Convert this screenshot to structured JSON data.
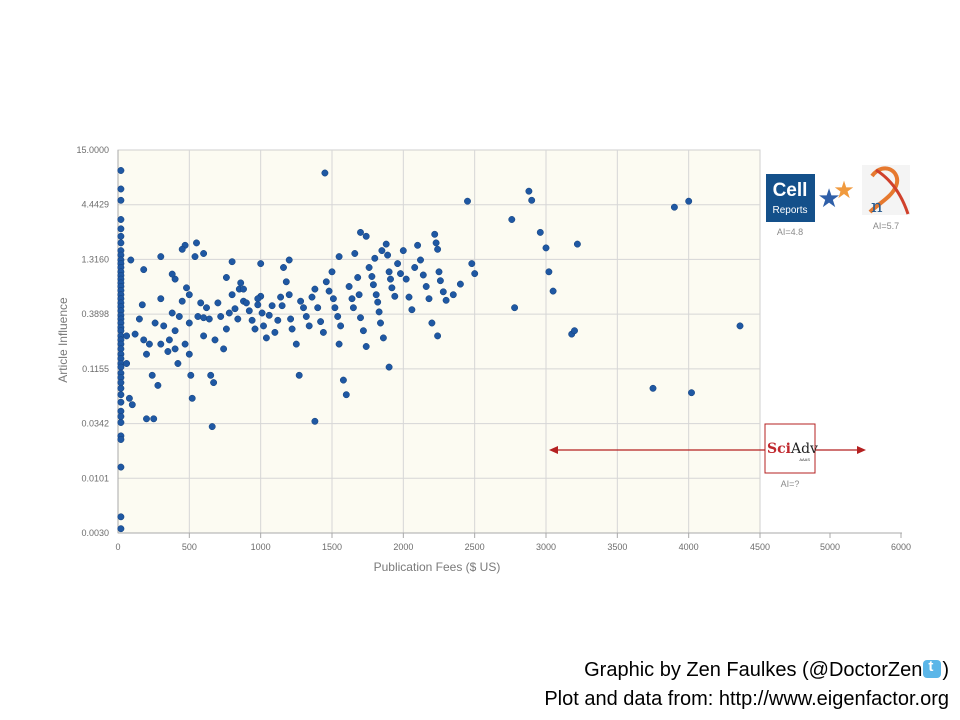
{
  "chart_data": {
    "type": "scatter",
    "xlabel": "Publication Fees ($ US)",
    "ylabel": "Article Influence",
    "x_ticks": [
      "0",
      "500",
      "1000",
      "1500",
      "2000",
      "2500",
      "3000",
      "3500",
      "4000",
      "4500",
      "5000",
      "6000"
    ],
    "y_ticks": [
      "15.0000",
      "4.4429",
      "1.3160",
      "0.3898",
      "0.1155",
      "0.0342",
      "0.0101",
      "0.0030"
    ],
    "xlim": [
      0,
      4500
    ],
    "ylim": [
      0.003,
      15
    ],
    "y_scale": "log",
    "grid": true,
    "marker_color": "#1f58a3",
    "plot_background": "#fcfbf2",
    "points": [
      [
        20,
        9.5
      ],
      [
        20,
        6.3
      ],
      [
        20,
        4.9
      ],
      [
        20,
        3.2
      ],
      [
        20,
        2.6
      ],
      [
        20,
        2.2
      ],
      [
        20,
        1.9
      ],
      [
        20,
        1.6
      ],
      [
        20,
        1.45
      ],
      [
        20,
        1.3
      ],
      [
        20,
        1.2
      ],
      [
        20,
        1.1
      ],
      [
        20,
        1.0
      ],
      [
        20,
        0.92
      ],
      [
        20,
        0.85
      ],
      [
        20,
        0.78
      ],
      [
        20,
        0.72
      ],
      [
        20,
        0.66
      ],
      [
        20,
        0.6
      ],
      [
        20,
        0.55
      ],
      [
        20,
        0.5
      ],
      [
        20,
        0.46
      ],
      [
        20,
        0.42
      ],
      [
        20,
        0.38
      ],
      [
        20,
        0.35
      ],
      [
        20,
        0.32
      ],
      [
        20,
        0.29
      ],
      [
        20,
        0.27
      ],
      [
        20,
        0.24
      ],
      [
        20,
        0.22
      ],
      [
        20,
        0.2
      ],
      [
        20,
        0.18
      ],
      [
        20,
        0.16
      ],
      [
        20,
        0.145
      ],
      [
        20,
        0.13
      ],
      [
        20,
        0.12
      ],
      [
        20,
        0.105
      ],
      [
        20,
        0.095
      ],
      [
        20,
        0.085
      ],
      [
        20,
        0.075
      ],
      [
        20,
        0.065
      ],
      [
        20,
        0.055
      ],
      [
        20,
        0.045
      ],
      [
        20,
        0.04
      ],
      [
        20,
        0.035
      ],
      [
        20,
        0.026
      ],
      [
        20,
        0.024
      ],
      [
        20,
        0.013
      ],
      [
        20,
        0.0043
      ],
      [
        20,
        0.0033
      ],
      [
        60,
        0.24
      ],
      [
        60,
        0.13
      ],
      [
        80,
        0.06
      ],
      [
        100,
        0.052
      ],
      [
        90,
        1.3
      ],
      [
        120,
        0.25
      ],
      [
        150,
        0.35
      ],
      [
        170,
        0.48
      ],
      [
        180,
        0.22
      ],
      [
        200,
        0.16
      ],
      [
        200,
        0.038
      ],
      [
        220,
        0.2
      ],
      [
        240,
        0.1
      ],
      [
        250,
        0.038
      ],
      [
        260,
        0.32
      ],
      [
        280,
        0.08
      ],
      [
        300,
        0.55
      ],
      [
        300,
        0.2
      ],
      [
        320,
        0.3
      ],
      [
        350,
        0.17
      ],
      [
        360,
        0.22
      ],
      [
        380,
        0.4
      ],
      [
        400,
        0.27
      ],
      [
        400,
        0.18
      ],
      [
        420,
        0.13
      ],
      [
        430,
        0.37
      ],
      [
        450,
        0.52
      ],
      [
        470,
        0.2
      ],
      [
        480,
        0.7
      ],
      [
        500,
        0.6
      ],
      [
        500,
        0.32
      ],
      [
        500,
        0.16
      ],
      [
        510,
        0.1
      ],
      [
        520,
        0.06
      ],
      [
        540,
        1.4
      ],
      [
        560,
        0.37
      ],
      [
        580,
        0.5
      ],
      [
        600,
        0.24
      ],
      [
        620,
        0.45
      ],
      [
        640,
        0.35
      ],
      [
        650,
        0.1
      ],
      [
        660,
        0.032
      ],
      [
        670,
        0.085
      ],
      [
        680,
        0.22
      ],
      [
        700,
        0.5
      ],
      [
        720,
        0.37
      ],
      [
        740,
        0.18
      ],
      [
        760,
        0.28
      ],
      [
        780,
        0.4
      ],
      [
        800,
        0.6
      ],
      [
        820,
        0.44
      ],
      [
        840,
        0.35
      ],
      [
        850,
        0.68
      ],
      [
        860,
        0.78
      ],
      [
        880,
        0.52
      ],
      [
        900,
        0.5
      ],
      [
        920,
        0.42
      ],
      [
        940,
        0.34
      ],
      [
        960,
        0.28
      ],
      [
        980,
        0.48
      ],
      [
        1000,
        1.2
      ],
      [
        1010,
        0.4
      ],
      [
        1020,
        0.3
      ],
      [
        1040,
        0.23
      ],
      [
        1060,
        0.38
      ],
      [
        1080,
        0.47
      ],
      [
        1100,
        0.26
      ],
      [
        1120,
        0.34
      ],
      [
        1140,
        0.57
      ],
      [
        1150,
        0.47
      ],
      [
        1160,
        1.1
      ],
      [
        1180,
        0.8
      ],
      [
        1200,
        0.6
      ],
      [
        1210,
        0.35
      ],
      [
        1220,
        0.28
      ],
      [
        1250,
        0.2
      ],
      [
        1270,
        0.1
      ],
      [
        1280,
        0.52
      ],
      [
        1300,
        0.45
      ],
      [
        1320,
        0.37
      ],
      [
        1340,
        0.3
      ],
      [
        1360,
        0.57
      ],
      [
        1380,
        0.68
      ],
      [
        1400,
        0.45
      ],
      [
        1420,
        0.33
      ],
      [
        1440,
        0.26
      ],
      [
        1460,
        0.8
      ],
      [
        1480,
        0.65
      ],
      [
        1500,
        1.0
      ],
      [
        1510,
        0.55
      ],
      [
        1520,
        0.45
      ],
      [
        1540,
        0.37
      ],
      [
        1560,
        0.3
      ],
      [
        1580,
        0.09
      ],
      [
        1600,
        0.065
      ],
      [
        1620,
        0.72
      ],
      [
        1640,
        0.55
      ],
      [
        1650,
        0.45
      ],
      [
        1660,
        1.5
      ],
      [
        1680,
        0.88
      ],
      [
        1690,
        0.6
      ],
      [
        1700,
        0.36
      ],
      [
        1720,
        0.27
      ],
      [
        1740,
        0.19
      ],
      [
        1760,
        1.1
      ],
      [
        1780,
        0.9
      ],
      [
        1790,
        0.75
      ],
      [
        1800,
        1.35
      ],
      [
        1810,
        0.6
      ],
      [
        1820,
        0.51
      ],
      [
        1830,
        0.41
      ],
      [
        1840,
        0.32
      ],
      [
        1860,
        0.23
      ],
      [
        1880,
        1.85
      ],
      [
        1890,
        1.45
      ],
      [
        1900,
        1.0
      ],
      [
        1910,
        0.85
      ],
      [
        1920,
        0.7
      ],
      [
        1940,
        0.58
      ],
      [
        1960,
        1.2
      ],
      [
        1980,
        0.96
      ],
      [
        2000,
        1.6
      ],
      [
        2020,
        0.85
      ],
      [
        2040,
        0.57
      ],
      [
        2060,
        0.43
      ],
      [
        2080,
        1.1
      ],
      [
        2100,
        1.8
      ],
      [
        2120,
        1.3
      ],
      [
        2140,
        0.93
      ],
      [
        2160,
        0.72
      ],
      [
        2180,
        0.55
      ],
      [
        2200,
        0.32
      ],
      [
        2220,
        2.3
      ],
      [
        2230,
        1.9
      ],
      [
        2240,
        1.65
      ],
      [
        2250,
        1.0
      ],
      [
        2260,
        0.82
      ],
      [
        2280,
        0.64
      ],
      [
        2300,
        0.53
      ],
      [
        2350,
        0.6
      ],
      [
        2400,
        0.76
      ],
      [
        2450,
        4.8
      ],
      [
        2480,
        1.2
      ],
      [
        2500,
        0.96
      ],
      [
        2760,
        3.2
      ],
      [
        2780,
        0.45
      ],
      [
        2880,
        6.0
      ],
      [
        2900,
        4.9
      ],
      [
        2960,
        2.4
      ],
      [
        3000,
        1.7
      ],
      [
        3020,
        1.0
      ],
      [
        3050,
        0.65
      ],
      [
        3180,
        0.25
      ],
      [
        3200,
        0.27
      ],
      [
        3220,
        1.85
      ],
      [
        3750,
        0.075
      ],
      [
        3900,
        4.2
      ],
      [
        4000,
        4.8
      ],
      [
        4020,
        0.068
      ],
      [
        4360,
        0.3
      ],
      [
        1450,
        9.0
      ],
      [
        1550,
        1.4
      ],
      [
        1700,
        2.4
      ],
      [
        1740,
        2.2
      ],
      [
        1200,
        1.3
      ],
      [
        800,
        1.25
      ],
      [
        600,
        1.5
      ],
      [
        550,
        1.9
      ],
      [
        470,
        1.8
      ],
      [
        450,
        1.65
      ],
      [
        400,
        0.85
      ],
      [
        380,
        0.95
      ],
      [
        180,
        1.05
      ],
      [
        300,
        1.4
      ],
      [
        1000,
        0.58
      ],
      [
        1900,
        0.12
      ],
      [
        1380,
        0.036
      ],
      [
        1550,
        0.2
      ],
      [
        2240,
        0.24
      ],
      [
        1850,
        1.6
      ],
      [
        600,
        0.36
      ],
      [
        760,
        0.88
      ],
      [
        880,
        0.68
      ],
      [
        980,
        0.55
      ]
    ]
  },
  "logos": {
    "cell_reports": {
      "line1": "Cell",
      "line2": "Reports",
      "ai_label": "AI=4.8",
      "stars": [
        "★",
        "★"
      ],
      "star_colors": [
        "#2f5fa8",
        "#f09a3e"
      ]
    },
    "nature": {
      "letter": "n",
      "ai_label": "AI=5.7"
    },
    "sciadv": {
      "text_sci": "Sci",
      "text_adv": "Adv",
      "subtext": "AAAS",
      "ai_label": "AI=?"
    },
    "arrow_color": "#b42020"
  },
  "credits": {
    "line1_prefix": "Graphic by Zen Faulkes (@DoctorZen",
    "line1_suffix": ")",
    "line2": "Plot and data from: http://www.eigenfactor.org"
  }
}
